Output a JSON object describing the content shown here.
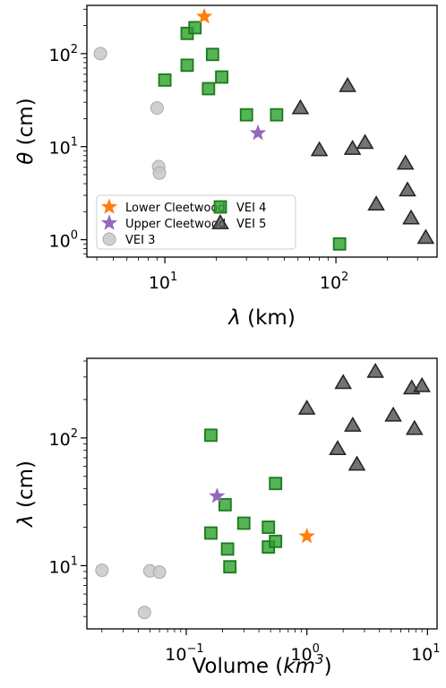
{
  "chart_data": [
    {
      "type": "scatter",
      "xlabel": "λ (km)",
      "ylabel": "θ (cm)",
      "xscale": "log",
      "yscale": "log",
      "xlim": [
        3.5,
        390
      ],
      "ylim": [
        0.65,
        330
      ],
      "xticks": [
        {
          "value": 10,
          "base": "10",
          "exp": "1"
        },
        {
          "value": 100,
          "base": "10",
          "exp": "2"
        }
      ],
      "yticks": [
        {
          "value": 1,
          "base": "10",
          "exp": "0"
        },
        {
          "value": 10,
          "base": "10",
          "exp": "1"
        },
        {
          "value": 100,
          "base": "10",
          "exp": "2"
        }
      ],
      "grid": false,
      "legend": {
        "placement": "lower-left",
        "entries": [
          {
            "series": "lower",
            "label": "Lower Cleetwood"
          },
          {
            "series": "upper",
            "label": "Upper Cleetwood"
          },
          {
            "series": "vei3",
            "label": "VEI 3"
          },
          {
            "series": "vei4",
            "label": "VEI 4"
          },
          {
            "series": "vei5",
            "label": "VEI 5"
          }
        ]
      },
      "series": [
        {
          "id": "lower",
          "name": "Lower Cleetwood",
          "marker": "star",
          "color": "#ff7f0e",
          "points": [
            [
              17,
              250
            ]
          ]
        },
        {
          "id": "upper",
          "name": "Upper Cleetwood",
          "marker": "star",
          "color": "#9467bd",
          "points": [
            [
              35,
              14
            ]
          ]
        },
        {
          "id": "vei3",
          "name": "VEI 3",
          "marker": "circle",
          "color": "#c8c8c8",
          "points": [
            [
              4.2,
              100
            ],
            [
              9.0,
              26
            ],
            [
              9.2,
              6.1
            ],
            [
              9.3,
              5.2
            ]
          ]
        },
        {
          "id": "vei4",
          "name": "VEI 4",
          "marker": "square",
          "color": "#2ca02c",
          "points": [
            [
              10,
              52
            ],
            [
              13.5,
              165
            ],
            [
              15,
              190
            ],
            [
              13.5,
              75
            ],
            [
              18,
              42
            ],
            [
              19,
              98
            ],
            [
              21.5,
              56
            ],
            [
              30,
              22
            ],
            [
              45,
              22
            ],
            [
              105,
              0.9
            ]
          ]
        },
        {
          "id": "vei5",
          "name": "VEI 5",
          "marker": "triangle",
          "color": "#505050",
          "points": [
            [
              62,
              26
            ],
            [
              80,
              9.2
            ],
            [
              117,
              45
            ],
            [
              125,
              9.5
            ],
            [
              148,
              11
            ],
            [
              172,
              2.4
            ],
            [
              255,
              6.6
            ],
            [
              262,
              3.4
            ],
            [
              275,
              1.7
            ],
            [
              335,
              1.05
            ]
          ]
        }
      ]
    },
    {
      "type": "scatter",
      "xlabel": "Volume (km³)",
      "ylabel": "λ (cm)",
      "xscale": "log",
      "yscale": "log",
      "xlim": [
        0.015,
        12
      ],
      "ylim": [
        3.2,
        420
      ],
      "xticks": [
        {
          "value": 0.1,
          "base": "10",
          "exp": "−1"
        },
        {
          "value": 1,
          "base": "10",
          "exp": "0"
        },
        {
          "value": 10,
          "base": "10",
          "exp": "1"
        }
      ],
      "yticks": [
        {
          "value": 10,
          "base": "10",
          "exp": "1"
        },
        {
          "value": 100,
          "base": "10",
          "exp": "2"
        }
      ],
      "grid": false,
      "series": [
        {
          "id": "lower",
          "name": "Lower Cleetwood",
          "marker": "star",
          "color": "#ff7f0e",
          "points": [
            [
              1.0,
              17
            ]
          ]
        },
        {
          "id": "upper",
          "name": "Upper Cleetwood",
          "marker": "star",
          "color": "#9467bd",
          "points": [
            [
              0.18,
              35
            ]
          ]
        },
        {
          "id": "vei3",
          "name": "VEI 3",
          "marker": "circle",
          "color": "#c8c8c8",
          "points": [
            [
              0.02,
              9.2
            ],
            [
              0.05,
              9.1
            ],
            [
              0.06,
              8.9
            ],
            [
              0.045,
              4.3
            ]
          ]
        },
        {
          "id": "vei4",
          "name": "VEI 4",
          "marker": "square",
          "color": "#2ca02c",
          "points": [
            [
              0.16,
              105
            ],
            [
              0.16,
              18
            ],
            [
              0.21,
              30
            ],
            [
              0.22,
              13.5
            ],
            [
              0.23,
              9.8
            ],
            [
              0.3,
              21.5
            ],
            [
              0.48,
              20
            ],
            [
              0.48,
              14
            ],
            [
              0.55,
              15.5
            ],
            [
              0.55,
              44
            ]
          ]
        },
        {
          "id": "vei5",
          "name": "VEI 5",
          "marker": "triangle",
          "color": "#505050",
          "points": [
            [
              1.0,
              170
            ],
            [
              1.8,
              82
            ],
            [
              2.0,
              270
            ],
            [
              2.4,
              125
            ],
            [
              2.6,
              62
            ],
            [
              3.7,
              330
            ],
            [
              5.2,
              150
            ],
            [
              7.4,
              245
            ],
            [
              7.8,
              118
            ],
            [
              9.0,
              255
            ]
          ]
        }
      ]
    }
  ]
}
